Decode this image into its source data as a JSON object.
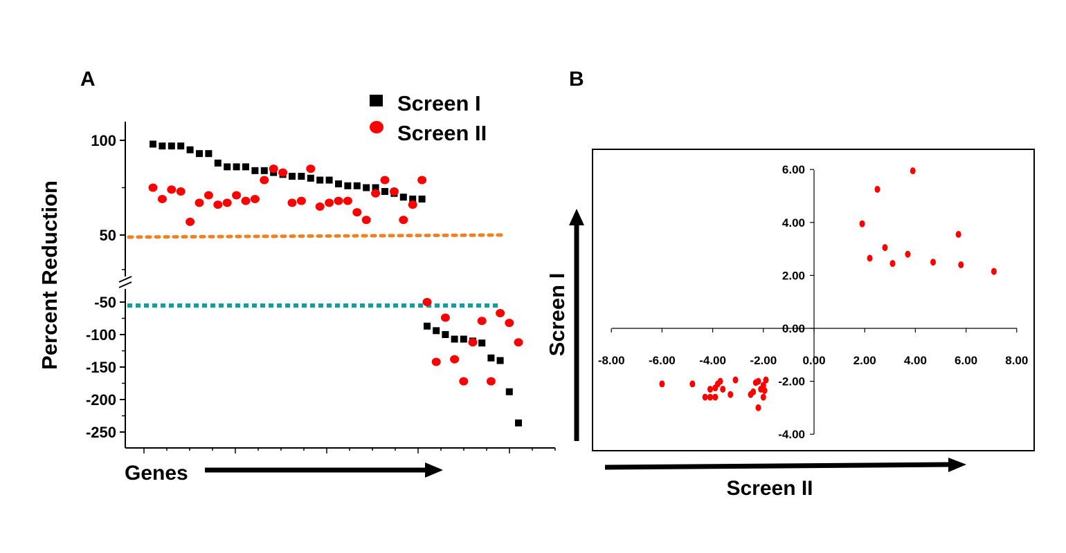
{
  "panels": {
    "a_label": "A",
    "b_label": "B"
  },
  "colors": {
    "screen1": "#000000",
    "screen2": "#ff0000",
    "threshold_pos": "#f08020",
    "threshold_neg": "#1a9a9a"
  },
  "chart_data": [
    {
      "panel": "A",
      "type": "scatter",
      "title": "",
      "xlabel": "Genes",
      "ylabel": "Percent Reduction",
      "broken_axis": true,
      "legend_position": "top-right",
      "y_ticks_upper": [
        "100",
        "50"
      ],
      "y_ticks_lower": [
        "-50",
        "-100",
        "-150",
        "-200",
        "-250"
      ],
      "thresholds": [
        {
          "value": 50,
          "style": "dotted",
          "color": "#f08020"
        },
        {
          "value": -50,
          "style": "dotted",
          "color": "#1a9a9a"
        }
      ],
      "series": [
        {
          "name": "Screen I",
          "marker": "square",
          "color": "#000000",
          "values": [
            98,
            97,
            97,
            97,
            95,
            93,
            93,
            88,
            86,
            86,
            86,
            84,
            84,
            83,
            82,
            81,
            81,
            80,
            79,
            79,
            77,
            76,
            76,
            75,
            75,
            73,
            72,
            70,
            69,
            69,
            -87,
            -94,
            -100,
            -107,
            -107,
            -110,
            -113,
            -136,
            -140,
            -188,
            -236
          ]
        },
        {
          "name": "Screen II",
          "marker": "circle",
          "color": "#ff0000",
          "values": [
            75,
            69,
            74,
            73,
            57,
            67,
            71,
            66,
            67,
            71,
            68,
            69,
            79,
            85,
            83,
            67,
            68,
            85,
            65,
            67,
            68,
            68,
            62,
            58,
            72,
            79,
            73,
            58,
            66,
            79,
            -50,
            -142,
            -74,
            -138,
            -172,
            -112,
            -79,
            -172,
            -67,
            -82,
            -112
          ]
        }
      ]
    },
    {
      "panel": "B",
      "type": "scatter",
      "title": "",
      "xlabel": "Screen II",
      "ylabel": "Screen I",
      "xlim": [
        -8,
        8
      ],
      "ylim": [
        -4,
        6
      ],
      "x_ticks": [
        "-8.00",
        "-6.00",
        "-4.00",
        "-2.00",
        "0.00",
        "2.00",
        "4.00",
        "6.00",
        "8.00"
      ],
      "y_ticks": [
        "-4.00",
        "-2.00",
        "0.00",
        "2.00",
        "4.00",
        "6.00"
      ],
      "series": [
        {
          "color": "#ff0000",
          "points": [
            [
              1.9,
              3.95
            ],
            [
              2.2,
              2.65
            ],
            [
              2.5,
              5.25
            ],
            [
              2.8,
              3.05
            ],
            [
              3.1,
              2.45
            ],
            [
              3.7,
              2.8
            ],
            [
              3.9,
              5.95
            ],
            [
              4.7,
              2.5
            ],
            [
              5.7,
              3.55
            ],
            [
              5.8,
              2.4
            ],
            [
              7.1,
              2.15
            ],
            [
              -6.0,
              -2.1
            ],
            [
              -4.8,
              -2.1
            ],
            [
              -4.3,
              -2.6
            ],
            [
              -4.1,
              -2.3
            ],
            [
              -4.1,
              -2.6
            ],
            [
              -3.9,
              -2.6
            ],
            [
              -3.9,
              -2.25
            ],
            [
              -3.8,
              -2.1
            ],
            [
              -3.7,
              -2.0
            ],
            [
              -3.6,
              -2.3
            ],
            [
              -3.3,
              -2.5
            ],
            [
              -3.1,
              -1.95
            ],
            [
              -2.5,
              -2.5
            ],
            [
              -2.4,
              -2.4
            ],
            [
              -2.3,
              -2.05
            ],
            [
              -2.2,
              -3.0
            ],
            [
              -2.2,
              -2.0
            ],
            [
              -2.1,
              -2.3
            ],
            [
              -2.0,
              -2.6
            ],
            [
              -2.0,
              -2.15
            ],
            [
              -1.95,
              -2.35
            ],
            [
              -1.9,
              -1.95
            ]
          ]
        }
      ]
    }
  ]
}
